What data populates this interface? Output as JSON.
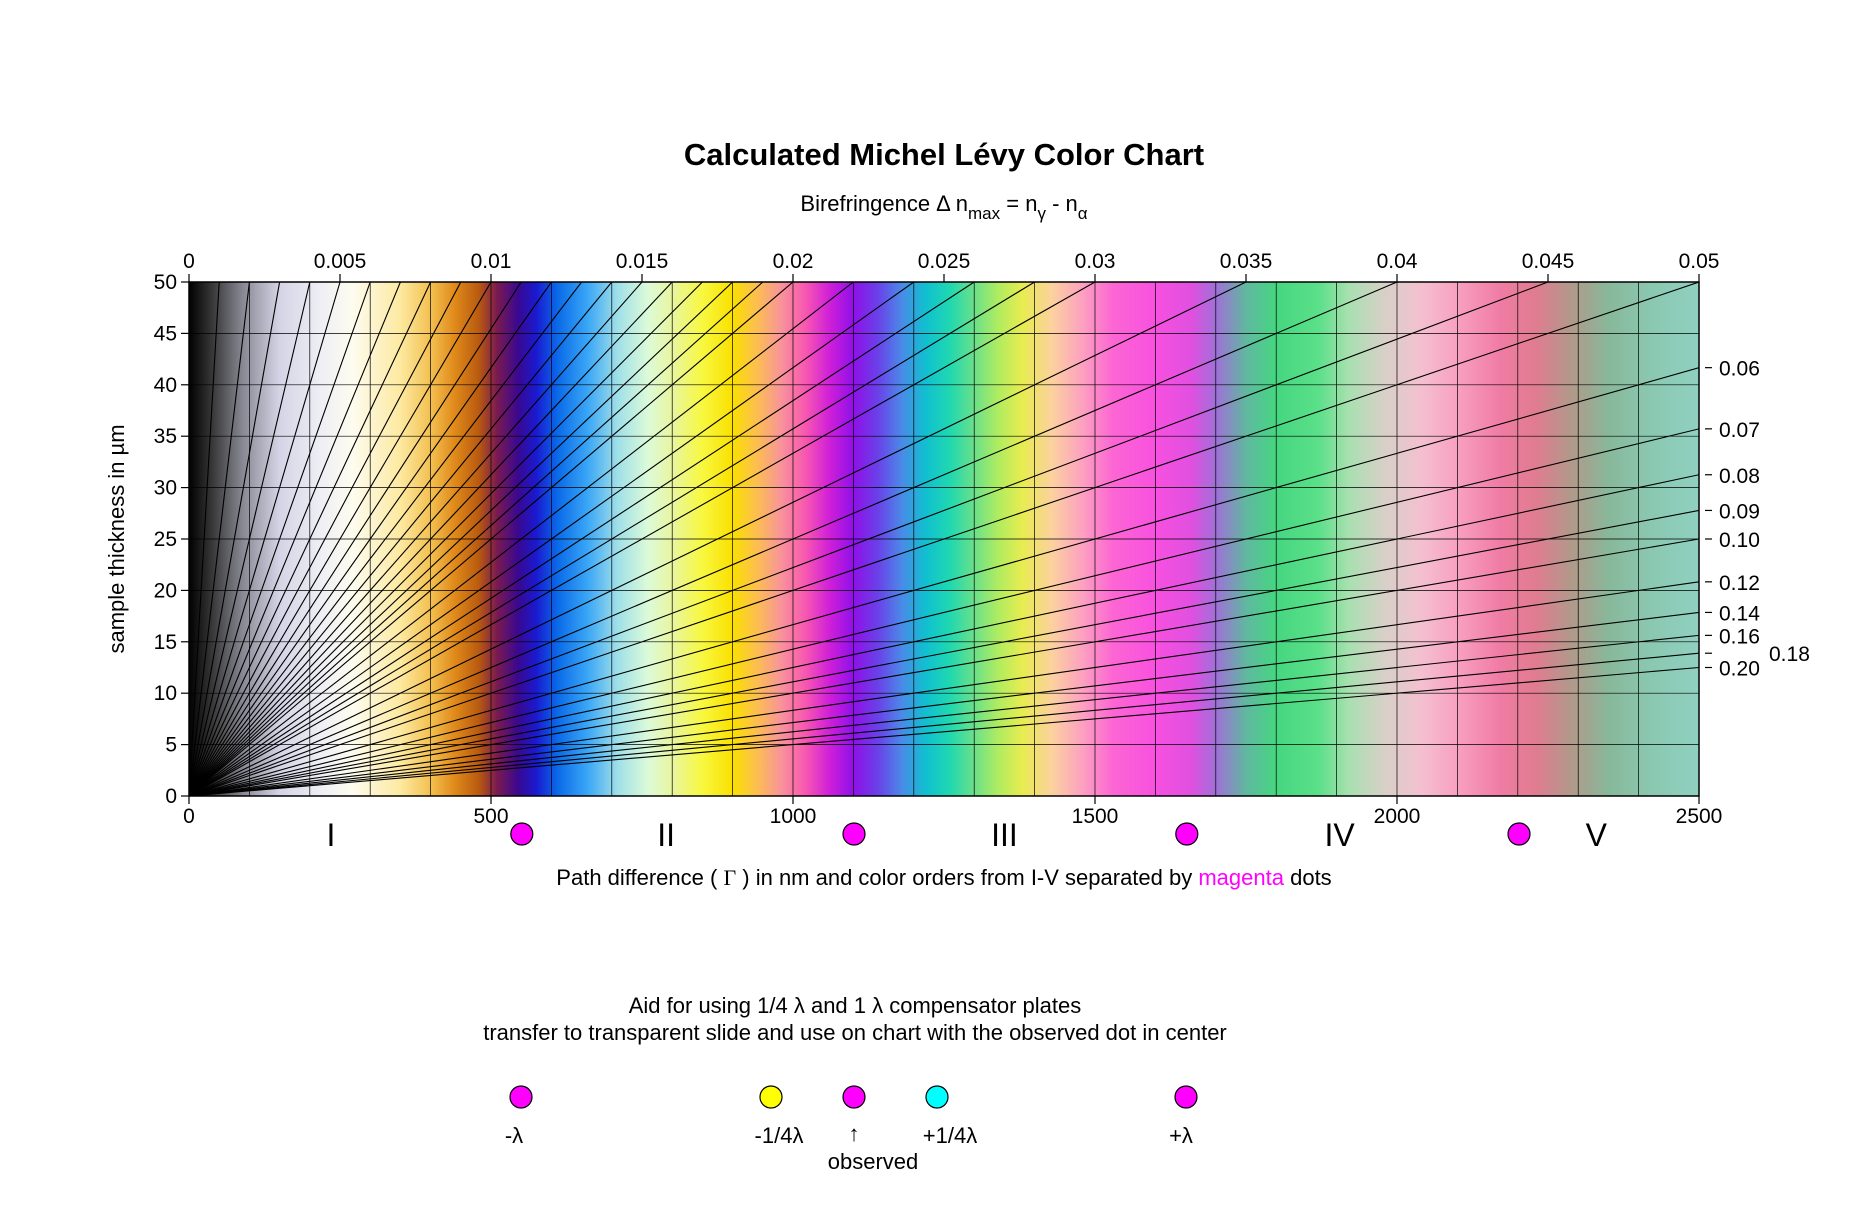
{
  "chart_data": {
    "type": "line",
    "title": "Calculated Michel Lévy Color Chart",
    "top_axis": {
      "label_main": "Birefringence ",
      "label_delta": "Δ",
      "label_n": " n",
      "label_max": "max",
      "label_eq": " = n",
      "label_gamma": "γ",
      "label_minus": " - n",
      "label_alpha": "α",
      "ticks": [
        "0",
        "0.005",
        "0.01",
        "0.015",
        "0.02",
        "0.025",
        "0.03",
        "0.035",
        "0.04",
        "0.045",
        "0.05"
      ],
      "range": [
        0,
        0.05
      ]
    },
    "y_axis": {
      "label": "sample thickness in µm",
      "ticks": [
        "0",
        "5",
        "10",
        "15",
        "20",
        "25",
        "30",
        "35",
        "40",
        "45",
        "50"
      ],
      "range": [
        0,
        50
      ]
    },
    "x_axis": {
      "ticks": [
        "0",
        "500",
        "1000",
        "1500",
        "2000",
        "2500"
      ],
      "range": [
        0,
        2500
      ],
      "label_before": "Path difference ( ",
      "label_gamma": "Γ",
      "label_middle": " ) in nm and color orders from I-V separated by ",
      "label_highlight": "magenta",
      "label_after": " dots"
    },
    "right_labels": [
      {
        "text": "0.06",
        "value": 0.06
      },
      {
        "text": "0.07",
        "value": 0.07
      },
      {
        "text": "0.08",
        "value": 0.08
      },
      {
        "text": "0.09",
        "value": 0.09
      },
      {
        "text": "0.10",
        "value": 0.1
      },
      {
        "text": "0.12",
        "value": 0.12
      },
      {
        "text": "0.14",
        "value": 0.14
      },
      {
        "text": "0.16",
        "value": 0.16
      },
      {
        "text": "0.18",
        "value": 0.18
      },
      {
        "text": "0.20",
        "value": 0.2
      }
    ],
    "birefringence_lines": [
      0.001,
      0.002,
      0.003,
      0.004,
      0.005,
      0.006,
      0.007,
      0.008,
      0.009,
      0.01,
      0.011,
      0.012,
      0.013,
      0.014,
      0.015,
      0.016,
      0.017,
      0.018,
      0.019,
      0.02,
      0.022,
      0.024,
      0.026,
      0.028,
      0.03,
      0.035,
      0.04,
      0.045,
      0.05,
      0.06,
      0.07,
      0.08,
      0.09,
      0.1,
      0.12,
      0.14,
      0.16,
      0.18,
      0.2
    ],
    "vertical_grid_nm": [
      100,
      200,
      300,
      400,
      500,
      600,
      700,
      800,
      900,
      1000,
      1100,
      1200,
      1300,
      1400,
      1500,
      1600,
      1700,
      1800,
      1900,
      2000,
      2100,
      2200,
      2300,
      2400
    ],
    "color_stops": [
      {
        "nm": 0,
        "color": "#000000"
      },
      {
        "nm": 40,
        "color": "#3a3a3a"
      },
      {
        "nm": 90,
        "color": "#8a8a96"
      },
      {
        "nm": 150,
        "color": "#d4d4e6"
      },
      {
        "nm": 220,
        "color": "#efeff5"
      },
      {
        "nm": 270,
        "color": "#fdfcf0"
      },
      {
        "nm": 300,
        "color": "#fdf5d2"
      },
      {
        "nm": 350,
        "color": "#fde9a0"
      },
      {
        "nm": 400,
        "color": "#f3c050"
      },
      {
        "nm": 440,
        "color": "#e08a1a"
      },
      {
        "nm": 480,
        "color": "#b85a10"
      },
      {
        "nm": 510,
        "color": "#7a1a50"
      },
      {
        "nm": 545,
        "color": "#3a0890"
      },
      {
        "nm": 575,
        "color": "#1a1ad0"
      },
      {
        "nm": 610,
        "color": "#0a6ae8"
      },
      {
        "nm": 660,
        "color": "#3aa6f6"
      },
      {
        "nm": 710,
        "color": "#a0e0e8"
      },
      {
        "nm": 760,
        "color": "#dcfad8"
      },
      {
        "nm": 800,
        "color": "#e8f6a0"
      },
      {
        "nm": 850,
        "color": "#f8f840"
      },
      {
        "nm": 900,
        "color": "#fae000"
      },
      {
        "nm": 940,
        "color": "#fcbe50"
      },
      {
        "nm": 980,
        "color": "#f8949a"
      },
      {
        "nm": 1020,
        "color": "#f858b0"
      },
      {
        "nm": 1060,
        "color": "#d020d8"
      },
      {
        "nm": 1100,
        "color": "#9010e8"
      },
      {
        "nm": 1140,
        "color": "#6a40e8"
      },
      {
        "nm": 1180,
        "color": "#4a8ae8"
      },
      {
        "nm": 1220,
        "color": "#10c0d0"
      },
      {
        "nm": 1260,
        "color": "#20d8b0"
      },
      {
        "nm": 1300,
        "color": "#6ae08a"
      },
      {
        "nm": 1340,
        "color": "#b0ec60"
      },
      {
        "nm": 1380,
        "color": "#e8ec50"
      },
      {
        "nm": 1430,
        "color": "#fcd0a0"
      },
      {
        "nm": 1480,
        "color": "#fca0c0"
      },
      {
        "nm": 1530,
        "color": "#fc66d4"
      },
      {
        "nm": 1600,
        "color": "#f850e0"
      },
      {
        "nm": 1660,
        "color": "#e050e0"
      },
      {
        "nm": 1700,
        "color": "#a070d8"
      },
      {
        "nm": 1750,
        "color": "#60b8a0"
      },
      {
        "nm": 1800,
        "color": "#46d680"
      },
      {
        "nm": 1870,
        "color": "#5ae088"
      },
      {
        "nm": 1920,
        "color": "#a8e0b0"
      },
      {
        "nm": 1980,
        "color": "#d8d0c8"
      },
      {
        "nm": 2040,
        "color": "#f4c0d0"
      },
      {
        "nm": 2100,
        "color": "#f8a0c0"
      },
      {
        "nm": 2170,
        "color": "#f07ca4"
      },
      {
        "nm": 2230,
        "color": "#e07c90"
      },
      {
        "nm": 2290,
        "color": "#b09a8a"
      },
      {
        "nm": 2350,
        "color": "#88b89a"
      },
      {
        "nm": 2420,
        "color": "#8ac8b0"
      },
      {
        "nm": 2500,
        "color": "#90d0c0"
      }
    ],
    "orders": [
      {
        "label": "I",
        "nm": 235
      },
      {
        "label": "II",
        "nm": 790
      },
      {
        "label": "III",
        "nm": 1350
      },
      {
        "label": "IV",
        "nm": 1905
      },
      {
        "label": "V",
        "nm": 2330
      }
    ],
    "separator_dots_nm": [
      551,
      1101,
      1652,
      2202
    ],
    "grid": true,
    "legend": "none"
  },
  "aid": {
    "line1": "Aid for using 1/4 λ and 1 λ compensator plates",
    "line2": "transfer to transparent slide and use on chart with the observed dot in center",
    "dots": [
      {
        "label": "-λ",
        "color": "#ff00ff"
      },
      {
        "label": "-1/4λ",
        "color": "#ffff00"
      },
      {
        "label": "↑",
        "color": "#ff00ff"
      },
      {
        "label": "+1/4λ",
        "color": "#00ffff"
      },
      {
        "label": "+λ",
        "color": "#ff00ff"
      }
    ],
    "observed": "observed"
  },
  "colors": {
    "magenta": "#ff00ff",
    "yellow": "#ffff00",
    "cyan": "#00ffff",
    "line": "#000000"
  }
}
